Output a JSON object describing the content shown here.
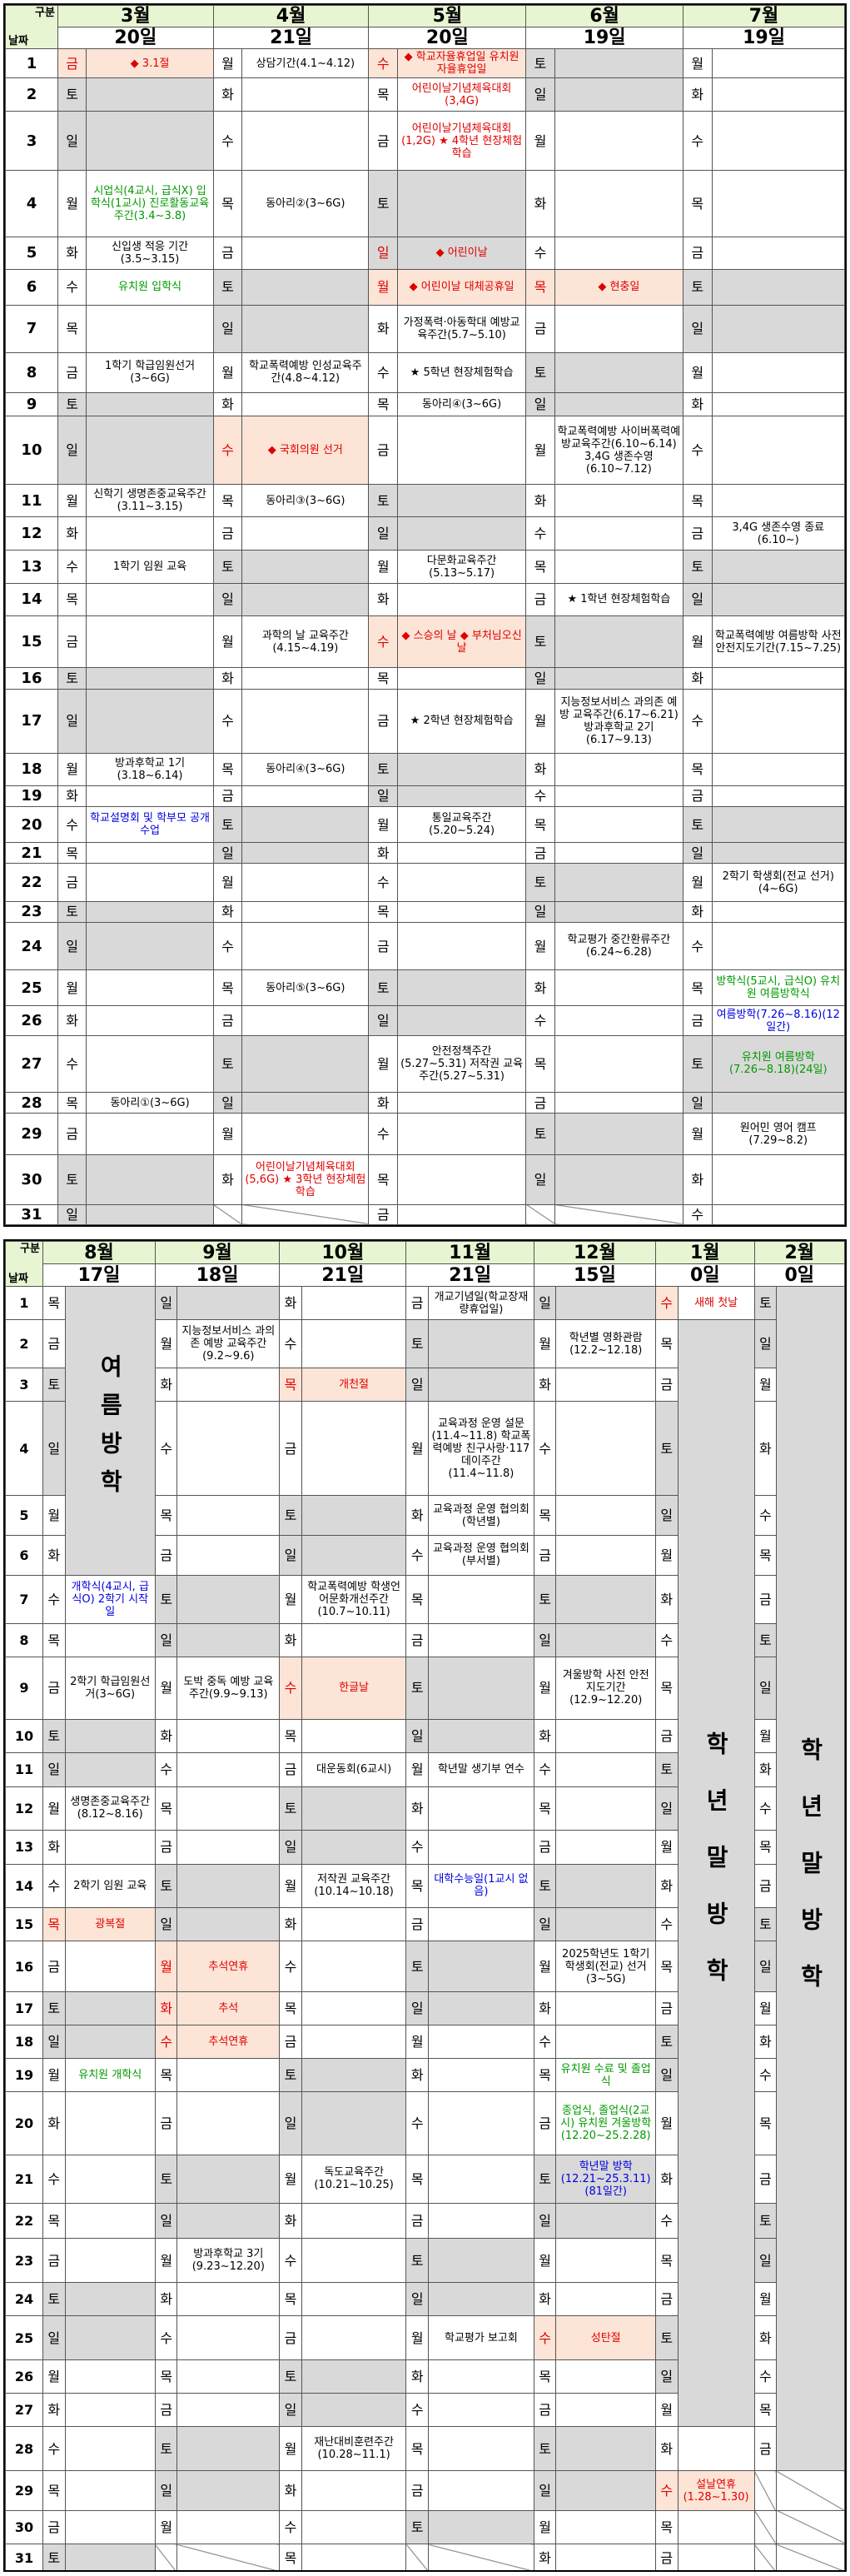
{
  "corner": {
    "label": "구분",
    "days": "날짜",
    "weeks": "일수"
  },
  "h1": {
    "months": [
      "3월",
      "4월",
      "5월",
      "6월",
      "7월"
    ],
    "counts": [
      "20일",
      "21일",
      "20일",
      "19일",
      "19일"
    ],
    "rows": [
      [
        "금",
        "◆ 3.1절",
        "월",
        "상담기간(4.1~4.12)",
        "수",
        "◆ 학교자율휴업일 유치원 자율휴업일",
        "토",
        "",
        "월",
        ""
      ],
      [
        "토",
        "",
        "화",
        "",
        "목",
        "어린이날기념체육대회(3,4G)",
        "일",
        "",
        "화",
        ""
      ],
      [
        "일",
        "",
        "수",
        "",
        "금",
        "어린이날기념체육대회(1,2G) ★ 4학년 현장체험학습",
        "월",
        "",
        "수",
        ""
      ],
      [
        "월",
        "시업식(4교시, 급식X) 입학식(1교시) 진로활동교육주간(3.4~3.8)",
        "목",
        "동아리②(3~6G)",
        "토",
        "",
        "화",
        "",
        "목",
        ""
      ],
      [
        "화",
        "신입생 적응 기간(3.5~3.15)",
        "금",
        "",
        "일",
        "◆ 어린이날",
        "수",
        "",
        "금",
        ""
      ],
      [
        "수",
        "유치원 입학식",
        "토",
        "",
        "월",
        "◆ 어린이날 대체공휴일",
        "목",
        "◆ 현충일",
        "토",
        ""
      ],
      [
        "목",
        "",
        "일",
        "",
        "화",
        "가정폭력·아동학대 예방교육주간(5.7~5.10)",
        "금",
        "",
        "일",
        ""
      ],
      [
        "금",
        "1학기 학급임원선거(3~6G)",
        "월",
        "학교폭력예방 인성교육주간(4.8~4.12)",
        "수",
        "★ 5학년 현장체험학습",
        "토",
        "",
        "월",
        ""
      ],
      [
        "토",
        "",
        "화",
        "",
        "목",
        "동아리④(3~6G)",
        "일",
        "",
        "화",
        ""
      ],
      [
        "일",
        "",
        "수",
        "◆ 국회의원 선거",
        "금",
        "",
        "월",
        "학교폭력예방 사이버폭력예방교육주간(6.10~6.14) 3,4G 생존수영(6.10~7.12)",
        "수",
        ""
      ],
      [
        "월",
        "신학기 생명존중교육주간(3.11~3.15)",
        "목",
        "동아리③(3~6G)",
        "토",
        "",
        "화",
        "",
        "목",
        ""
      ],
      [
        "화",
        "",
        "금",
        "",
        "일",
        "",
        "수",
        "",
        "금",
        "3,4G 생존수영 종료(6.10~)"
      ],
      [
        "수",
        "1학기 임원 교육",
        "토",
        "",
        "월",
        "다문화교육주간(5.13~5.17)",
        "목",
        "",
        "토",
        ""
      ],
      [
        "목",
        "",
        "일",
        "",
        "화",
        "",
        "금",
        "★ 1학년 현장체험학습",
        "일",
        ""
      ],
      [
        "금",
        "",
        "월",
        "과학의 날 교육주간(4.15~4.19)",
        "수",
        "◆ 스승의 날 ◆ 부처님오신날",
        "토",
        "",
        "월",
        "학교폭력예방 여름방학 사전안전지도기간(7.15~7.25)"
      ],
      [
        "토",
        "",
        "화",
        "",
        "목",
        "",
        "일",
        "",
        "화",
        ""
      ],
      [
        "일",
        "",
        "수",
        "",
        "금",
        "★ 2학년 현장체험학습",
        "월",
        "지능정보서비스 과의존 예방 교육주간(6.17~6.21) 방과후학교 2기(6.17~9.13)",
        "수",
        ""
      ],
      [
        "월",
        "방과후학교 1기(3.18~6.14)",
        "목",
        "동아리④(3~6G)",
        "토",
        "",
        "화",
        "",
        "목",
        ""
      ],
      [
        "화",
        "",
        "금",
        "",
        "일",
        "",
        "수",
        "",
        "금",
        ""
      ],
      [
        "수",
        "학교설명회 및 학부모 공개수업",
        "토",
        "",
        "월",
        "통일교육주간(5.20~5.24)",
        "목",
        "",
        "토",
        ""
      ],
      [
        "목",
        "",
        "일",
        "",
        "화",
        "",
        "금",
        "",
        "일",
        ""
      ],
      [
        "금",
        "",
        "월",
        "",
        "수",
        "",
        "토",
        "",
        "월",
        "2학기 학생회(전교 선거)(4~6G)"
      ],
      [
        "토",
        "",
        "화",
        "",
        "목",
        "",
        "일",
        "",
        "화",
        ""
      ],
      [
        "일",
        "",
        "수",
        "",
        "금",
        "",
        "월",
        "학교평가 중간환류주간(6.24~6.28)",
        "수",
        ""
      ],
      [
        "월",
        "",
        "목",
        "동아리⑤(3~6G)",
        "토",
        "",
        "화",
        "",
        "목",
        "방학식(5교시, 급식O) 유치원 여름방학식"
      ],
      [
        "화",
        "",
        "금",
        "",
        "일",
        "",
        "수",
        "",
        "금",
        "여름방학(7.26~8.16)(12일간)"
      ],
      [
        "수",
        "",
        "토",
        "",
        "월",
        "안전정책주간(5.27~5.31) 저작권 교육주간(5.27~5.31)",
        "목",
        "",
        "토",
        "유치원 여름방학(7.26~8.18)(24일)"
      ],
      [
        "목",
        "동아리①(3~6G)",
        "일",
        "",
        "화",
        "",
        "금",
        "",
        "일",
        ""
      ],
      [
        "금",
        "",
        "월",
        "",
        "수",
        "",
        "토",
        "",
        "월",
        "원어민 영어 캠프(7.29~8.2)"
      ],
      [
        "토",
        "",
        "화",
        "어린이날기념체육대회(5,6G) ★ 3학년 현장체험학습",
        "목",
        "",
        "일",
        "",
        "화",
        ""
      ],
      [
        "일",
        "",
        "",
        "",
        "금",
        "",
        "",
        "",
        "수",
        ""
      ]
    ]
  },
  "h2": {
    "months": [
      "8월",
      "9월",
      "10월",
      "11월",
      "12월",
      "1월",
      "2월"
    ],
    "counts": [
      "17일",
      "18일",
      "21일",
      "21일",
      "15일",
      "0일",
      "0일"
    ],
    "aug_vac": "여름방학",
    "jan_vac": "학년말방학",
    "feb_vac": "학년말방학",
    "rows": [
      [
        "목",
        "",
        "일",
        "",
        "화",
        "",
        "금",
        "개교기념일(학교장재량휴업일)",
        "일",
        "",
        "수",
        "새해 첫날",
        "토",
        ""
      ],
      [
        "금",
        "",
        "월",
        "지능정보서비스 과의존 예방 교육주간(9.2~9.6)",
        "수",
        "",
        "토",
        "",
        "월",
        "학년별 영화관람(12.2~12.18)",
        "목",
        "",
        "일",
        ""
      ],
      [
        "토",
        "",
        "화",
        "",
        "목",
        "개천절",
        "일",
        "",
        "화",
        "",
        "금",
        "",
        "월",
        ""
      ],
      [
        "일",
        "",
        "수",
        "",
        "금",
        "",
        "월",
        "교육과정 운영 설문(11.4~11.8) 학교폭력예방 친구사랑·117데이주간(11.4~11.8)",
        "수",
        "",
        "토",
        "",
        "화",
        ""
      ],
      [
        "월",
        "",
        "목",
        "",
        "토",
        "",
        "화",
        "교육과정 운영 협의회(학년별)",
        "목",
        "",
        "일",
        "",
        "수",
        ""
      ],
      [
        "화",
        "",
        "금",
        "",
        "일",
        "",
        "수",
        "교육과정 운영 협의회(부서별)",
        "금",
        "",
        "월",
        "",
        "목",
        ""
      ],
      [
        "수",
        "개학식(4교시, 급식O) 2학기 시작일",
        "토",
        "",
        "월",
        "학교폭력예방 학생언어문화개선주간(10.7~10.11)",
        "목",
        "",
        "토",
        "",
        "화",
        "",
        "금",
        ""
      ],
      [
        "목",
        "",
        "일",
        "",
        "화",
        "",
        "금",
        "",
        "일",
        "",
        "수",
        "",
        "토",
        ""
      ],
      [
        "금",
        "2학기 학급임원선거(3~6G)",
        "월",
        "도박 중독 예방 교육주간(9.9~9.13)",
        "수",
        "한글날",
        "토",
        "",
        "월",
        "겨울방학 사전 안전지도기간(12.9~12.20)",
        "목",
        "",
        "일",
        ""
      ],
      [
        "토",
        "",
        "화",
        "",
        "목",
        "",
        "일",
        "",
        "화",
        "",
        "금",
        "",
        "월",
        ""
      ],
      [
        "일",
        "",
        "수",
        "",
        "금",
        "대운동회(6교시)",
        "월",
        "학년말 생기부 연수",
        "수",
        "",
        "토",
        "",
        "화",
        ""
      ],
      [
        "월",
        "생명존중교육주간(8.12~8.16)",
        "목",
        "",
        "토",
        "",
        "화",
        "",
        "목",
        "",
        "일",
        "",
        "수",
        ""
      ],
      [
        "화",
        "",
        "금",
        "",
        "일",
        "",
        "수",
        "",
        "금",
        "",
        "월",
        "",
        "목",
        ""
      ],
      [
        "수",
        "2학기 임원 교육",
        "토",
        "",
        "월",
        "저작권 교육주간(10.14~10.18)",
        "목",
        "대학수능일(1교시 없음)",
        "토",
        "",
        "화",
        "",
        "금",
        ""
      ],
      [
        "목",
        "광복절",
        "일",
        "",
        "화",
        "",
        "금",
        "",
        "일",
        "",
        "수",
        "",
        "토",
        ""
      ],
      [
        "금",
        "",
        "월",
        "추석연휴",
        "수",
        "",
        "토",
        "",
        "월",
        "2025학년도 1학기 학생회(전교) 선거(3~5G)",
        "목",
        "",
        "일",
        ""
      ],
      [
        "토",
        "",
        "화",
        "추석",
        "목",
        "",
        "일",
        "",
        "화",
        "",
        "금",
        "",
        "월",
        ""
      ],
      [
        "일",
        "",
        "수",
        "추석연휴",
        "금",
        "",
        "월",
        "",
        "수",
        "",
        "토",
        "",
        "화",
        ""
      ],
      [
        "월",
        "유치원 개학식",
        "목",
        "",
        "토",
        "",
        "화",
        "",
        "목",
        "유치원 수료 및 졸업식",
        "일",
        "",
        "수",
        ""
      ],
      [
        "화",
        "",
        "금",
        "",
        "일",
        "",
        "수",
        "",
        "금",
        "종업식, 졸업식(2교시) 유치원 겨울방학(12.20~25.2.28)",
        "월",
        "",
        "목",
        ""
      ],
      [
        "수",
        "",
        "토",
        "",
        "월",
        "독도교육주간(10.21~10.25)",
        "목",
        "",
        "토",
        "학년말 방학(12.21~25.3.11)(81일간)",
        "화",
        "",
        "금",
        ""
      ],
      [
        "목",
        "",
        "일",
        "",
        "화",
        "",
        "금",
        "",
        "일",
        "",
        "수",
        "",
        "토",
        ""
      ],
      [
        "금",
        "",
        "월",
        "방과후학교 3기(9.23~12.20)",
        "수",
        "",
        "토",
        "",
        "월",
        "",
        "목",
        "",
        "일",
        ""
      ],
      [
        "토",
        "",
        "화",
        "",
        "목",
        "",
        "일",
        "",
        "화",
        "",
        "금",
        "",
        "월",
        ""
      ],
      [
        "일",
        "",
        "수",
        "",
        "금",
        "",
        "월",
        "학교평가 보고회",
        "수",
        "성탄절",
        "토",
        "",
        "화",
        ""
      ],
      [
        "월",
        "",
        "목",
        "",
        "토",
        "",
        "화",
        "",
        "목",
        "",
        "일",
        "",
        "수",
        ""
      ],
      [
        "화",
        "",
        "금",
        "",
        "일",
        "",
        "수",
        "",
        "금",
        "",
        "월",
        "",
        "목",
        ""
      ],
      [
        "수",
        "",
        "토",
        "",
        "월",
        "재난대비훈련주간(10.28~11.1)",
        "목",
        "",
        "토",
        "",
        "화",
        "",
        "금",
        ""
      ],
      [
        "목",
        "",
        "일",
        "",
        "화",
        "",
        "금",
        "",
        "일",
        "",
        "수",
        "설날연휴(1.28~1.30)",
        "",
        ""
      ],
      [
        "금",
        "",
        "월",
        "",
        "수",
        "",
        "토",
        "",
        "월",
        "",
        "목",
        "",
        "",
        ""
      ],
      [
        "토",
        "",
        "",
        "",
        "목",
        "",
        "",
        "",
        "화",
        "",
        "금",
        "",
        "",
        ""
      ]
    ]
  }
}
